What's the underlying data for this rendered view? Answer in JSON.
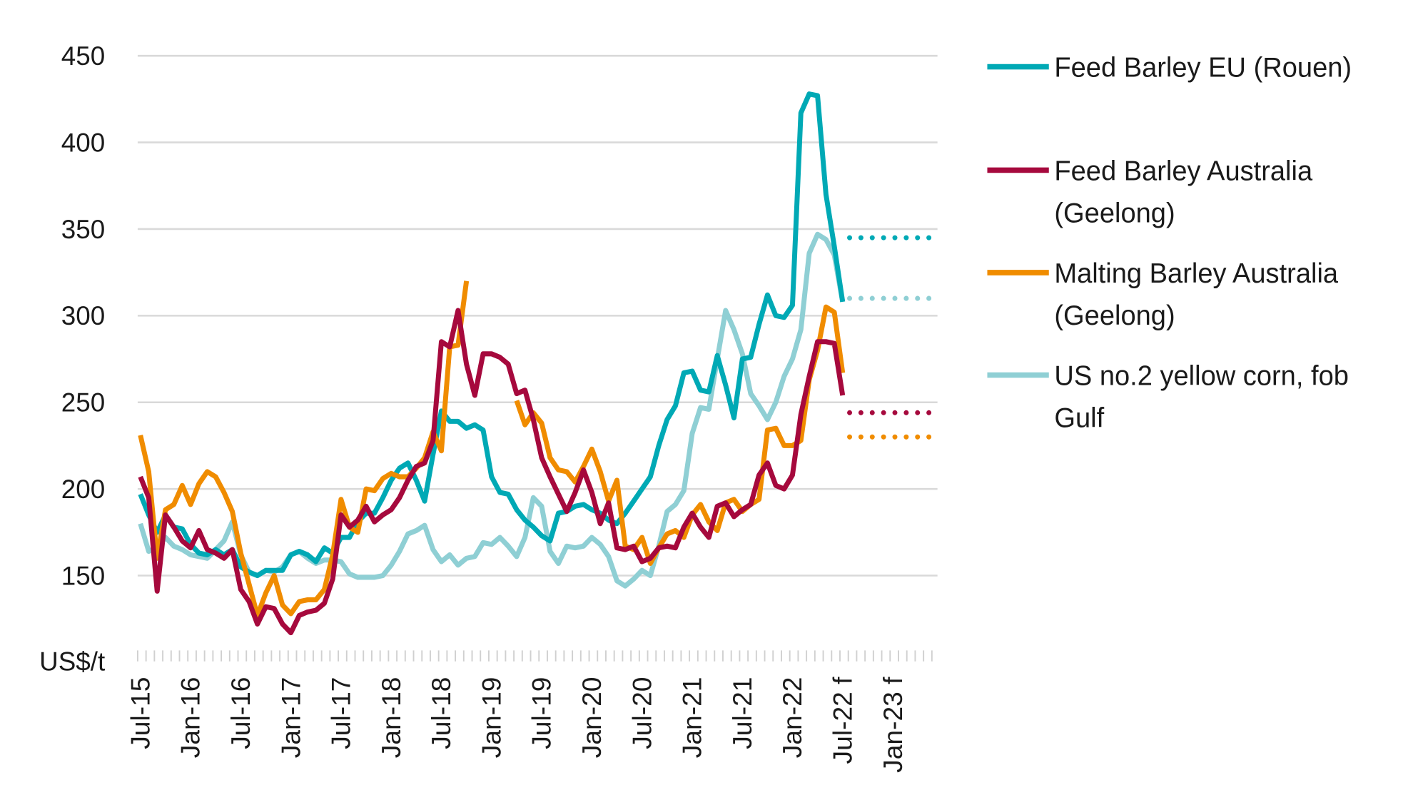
{
  "chart_data": {
    "type": "line",
    "title": "",
    "ylabel": "US$/t",
    "xlabel": "",
    "ylim": [
      100,
      450
    ],
    "yticks": [
      150,
      200,
      250,
      300,
      350,
      400,
      450
    ],
    "x_start": "Jul-15",
    "x_frequency": "monthly",
    "x_tick_labels": [
      "Jul-15",
      "Jan-16",
      "Jul-16",
      "Jan-17",
      "Jul-17",
      "Jan-18",
      "Jul-18",
      "Jan-19",
      "Jul-19",
      "Jan-20",
      "Jul-20",
      "Jan-21",
      "Jul-21",
      "Jan-22",
      "Jul-22 f",
      "Jan-23 f"
    ],
    "x_axis_end": "Jun-23",
    "grid": "horizontal",
    "legend_position": "right",
    "series": [
      {
        "name": "Feed Barley EU (Rouen)",
        "color": "#00a9b5",
        "forecast": 345,
        "values": [
          197,
          185,
          175,
          185,
          178,
          177,
          168,
          163,
          162,
          165,
          162,
          165,
          155,
          152,
          150,
          153,
          153,
          153,
          162,
          164,
          162,
          158,
          166,
          163,
          172,
          172,
          181,
          186,
          186,
          195,
          205,
          212,
          215,
          205,
          193,
          220,
          245,
          239,
          239,
          235,
          237,
          234,
          207,
          198,
          197,
          188,
          182,
          178,
          173,
          170,
          186,
          187,
          190,
          191,
          188,
          186,
          182,
          180,
          186,
          193,
          200,
          207,
          225,
          240,
          248,
          267,
          268,
          257,
          256,
          277,
          260,
          241,
          275,
          276,
          295,
          312,
          300,
          299,
          306,
          417,
          428,
          427,
          370,
          340,
          308
        ]
      },
      {
        "name": "Feed Barley Australia (Geelong)",
        "color": "#a6093d",
        "forecast": 244,
        "values": [
          207,
          195,
          141,
          185,
          178,
          170,
          166,
          176,
          165,
          163,
          160,
          165,
          142,
          135,
          122,
          132,
          131,
          122,
          117,
          127,
          129,
          130,
          134,
          148,
          185,
          178,
          182,
          190,
          181,
          185,
          188,
          195,
          205,
          213,
          215,
          228,
          285,
          282,
          303,
          272,
          254,
          278,
          278,
          276,
          272,
          255,
          257,
          240,
          218,
          207,
          197,
          187,
          198,
          211,
          198,
          180,
          192,
          166,
          165,
          167,
          158,
          160,
          166,
          167,
          166,
          178,
          186,
          178,
          172,
          190,
          192,
          184,
          188,
          191,
          208,
          215,
          202,
          200,
          208,
          243,
          265,
          285,
          285,
          284,
          254
        ]
      },
      {
        "name": "Malting Barley Australia (Geelong)",
        "color": "#f08c00",
        "forecast": 230,
        "values": [
          231,
          210,
          160,
          188,
          191,
          202,
          191,
          203,
          210,
          207,
          198,
          187,
          163,
          145,
          127,
          140,
          150,
          133,
          128,
          135,
          136,
          136,
          142,
          162,
          194,
          178,
          175,
          200,
          199,
          206,
          209,
          207,
          207,
          212,
          218,
          233,
          222,
          282,
          283,
          320,
          null,
          null,
          null,
          null,
          null,
          251,
          237,
          244,
          238,
          218,
          211,
          210,
          204,
          213,
          223,
          210,
          193,
          205,
          167,
          165,
          172,
          157,
          166,
          174,
          176,
          172,
          185,
          191,
          181,
          176,
          192,
          194,
          187,
          191,
          194,
          234,
          235,
          225,
          225,
          228,
          263,
          280,
          305,
          302,
          267
        ]
      },
      {
        "name": "US no.2 yellow corn, fob Gulf",
        "color": "#8fcfd4",
        "forecast": 310,
        "values": [
          180,
          164,
          166,
          172,
          167,
          165,
          162,
          161,
          160,
          165,
          170,
          181,
          162,
          152,
          150,
          153,
          152,
          155,
          162,
          164,
          160,
          157,
          159,
          159,
          158,
          151,
          149,
          149,
          149,
          150,
          156,
          164,
          174,
          176,
          179,
          165,
          158,
          162,
          156,
          160,
          161,
          169,
          168,
          172,
          167,
          161,
          172,
          195,
          190,
          164,
          157,
          167,
          166,
          167,
          172,
          168,
          161,
          147,
          144,
          148,
          153,
          150,
          167,
          187,
          191,
          199,
          232,
          247,
          246,
          275,
          303,
          292,
          278,
          255,
          248,
          240,
          250,
          265,
          275,
          292,
          336,
          347,
          344,
          335,
          308
        ]
      }
    ]
  }
}
